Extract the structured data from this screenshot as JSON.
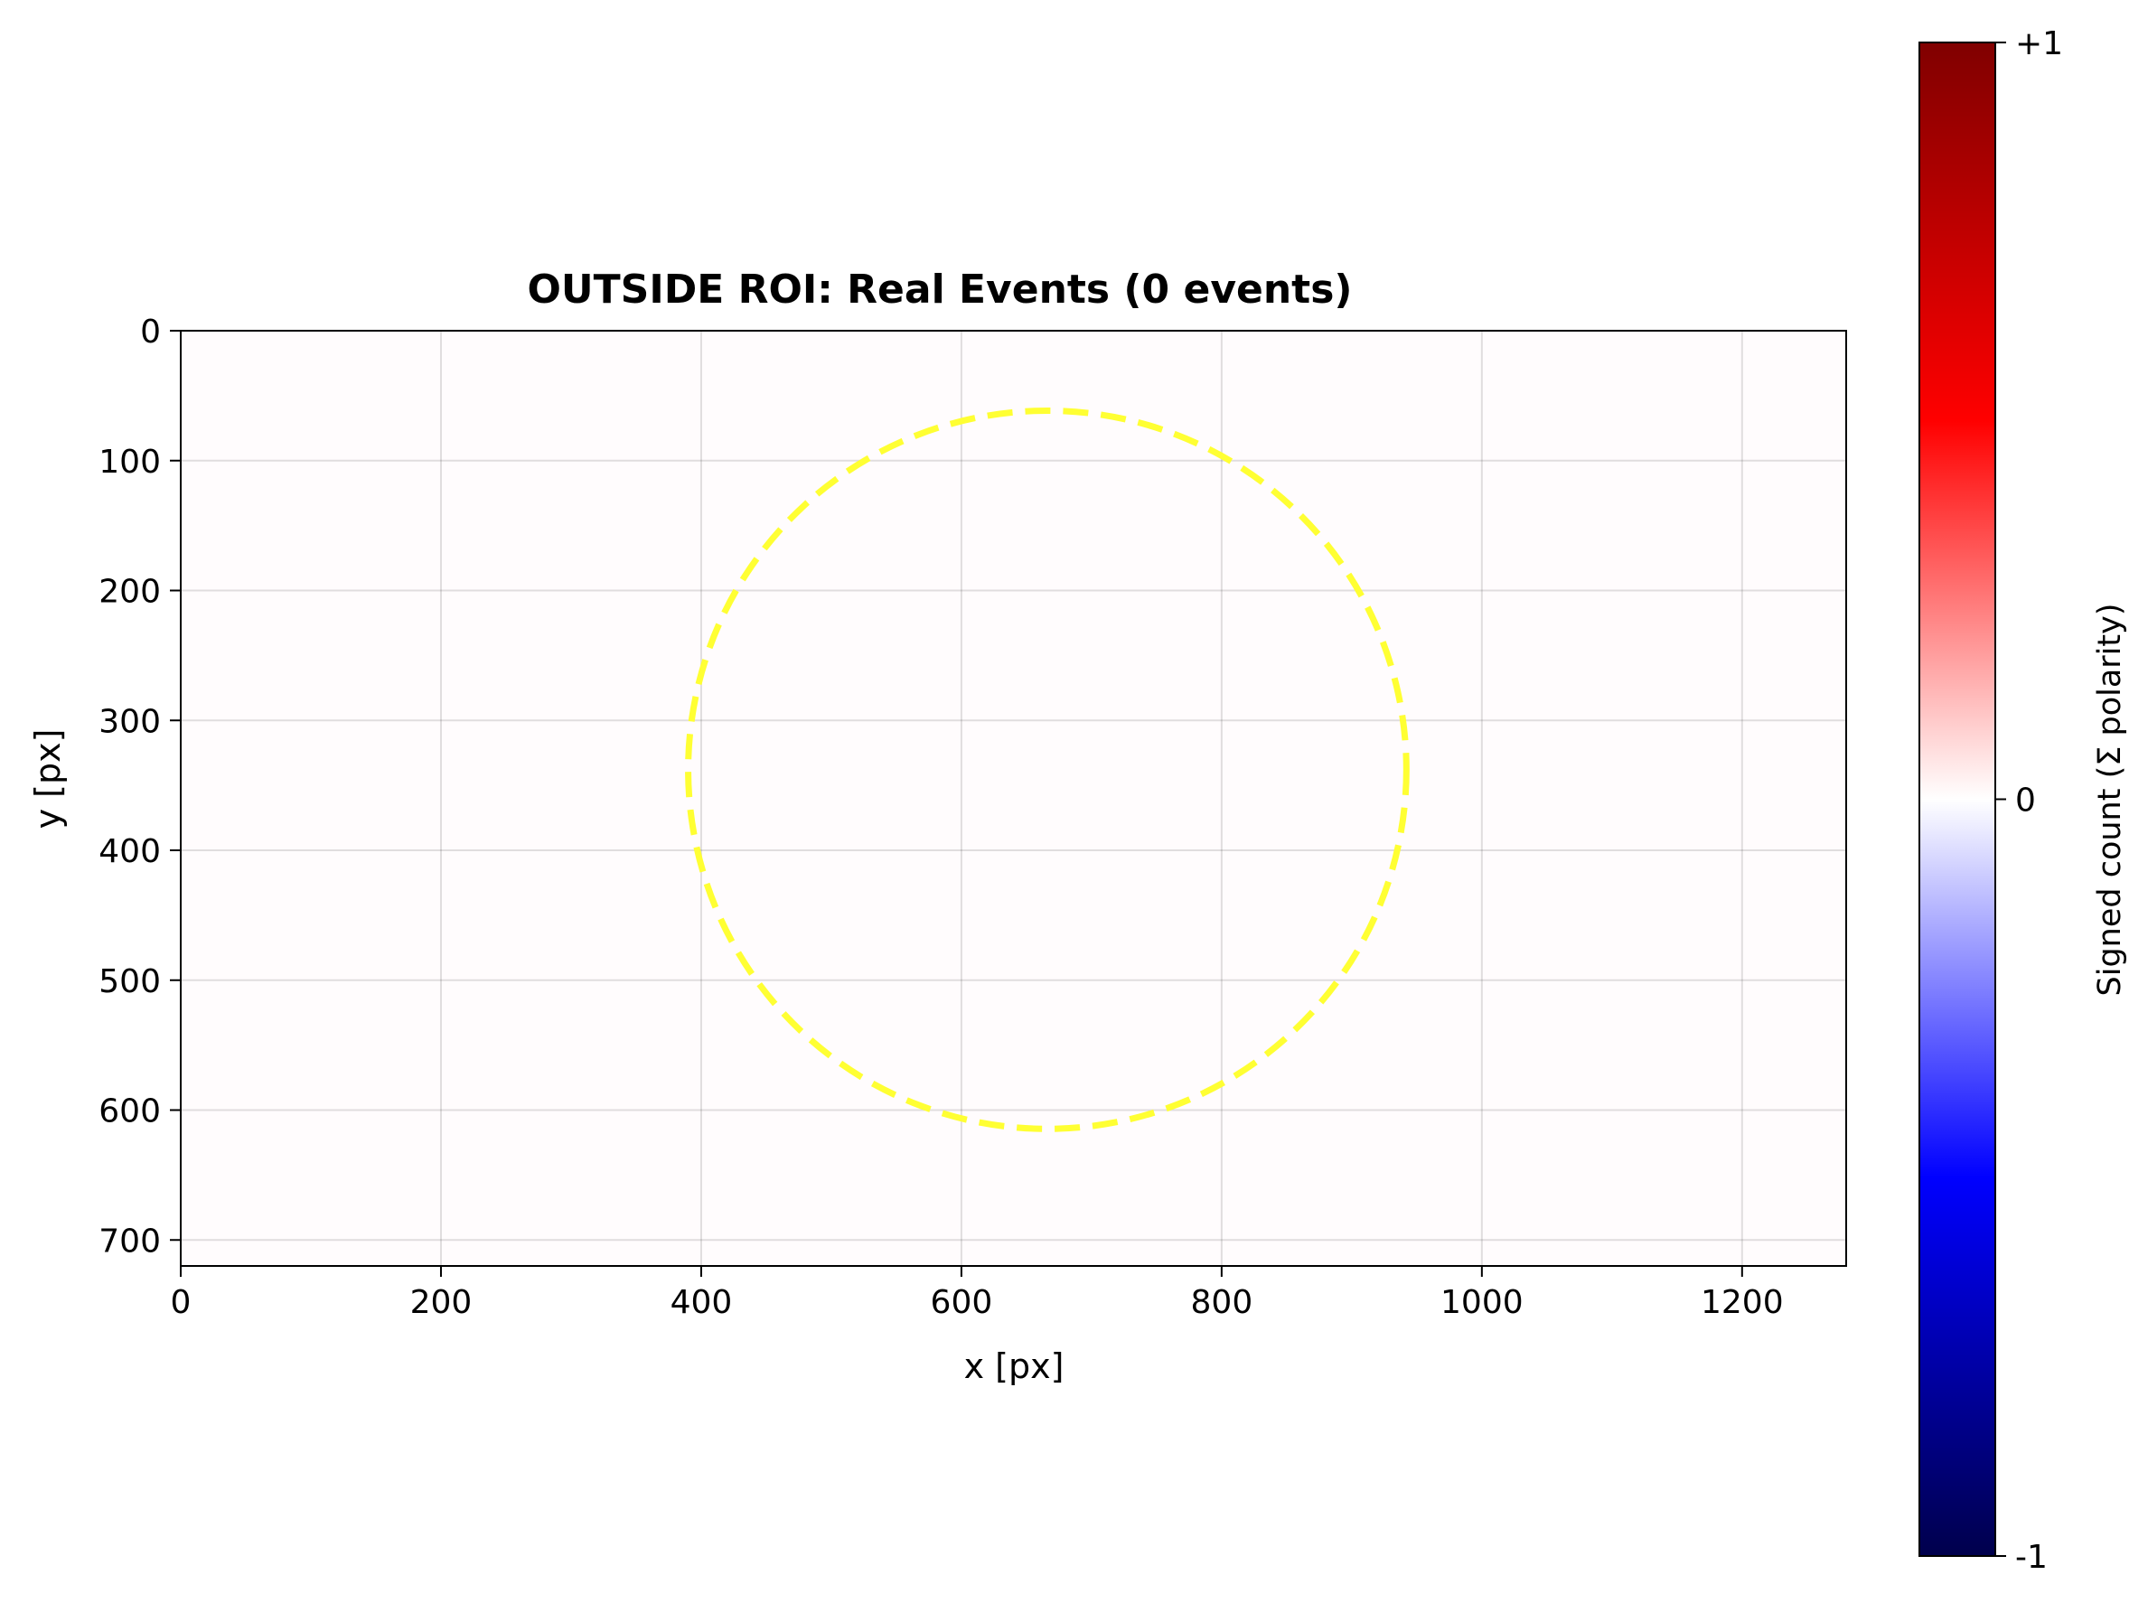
{
  "chart_data": {
    "type": "heatmap",
    "title": "OUTSIDE ROI: Real Events (0 events)",
    "xlabel": "x [px]",
    "ylabel": "y [px]",
    "xlim": [
      0,
      1280
    ],
    "ylim": [
      720,
      0
    ],
    "x_ticks": [
      0,
      200,
      400,
      600,
      800,
      1000,
      1200
    ],
    "y_ticks": [
      0,
      100,
      200,
      300,
      400,
      500,
      600,
      700
    ],
    "x_tick_labels": [
      "0",
      "200",
      "400",
      "600",
      "800",
      "1000",
      "1200"
    ],
    "y_tick_labels": [
      "0",
      "100",
      "200",
      "300",
      "400",
      "500",
      "600",
      "700"
    ],
    "grid": true,
    "event_count": 0,
    "values": "all zero",
    "roi_circle": {
      "center_x": 666,
      "center_y": 338,
      "radius": 276,
      "style": "dashed",
      "color": "#ffff33"
    },
    "colorbar": {
      "label": "Signed count (Σ polarity)",
      "colormap": "seismic",
      "range": [
        -1,
        1
      ],
      "ticks": [
        1,
        0,
        -1
      ],
      "tick_labels": [
        "+1",
        "0",
        "-1"
      ],
      "colors": [
        "#00004c",
        "#0000ff",
        "#ffffff",
        "#ff0000",
        "#800000"
      ]
    },
    "image_fill_color": "#fffcfd"
  }
}
